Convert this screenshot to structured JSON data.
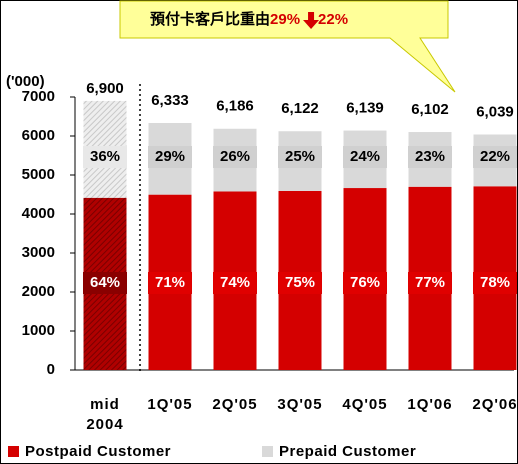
{
  "chart_data": {
    "type": "stacked-bar",
    "callout": {
      "text": "預付卡客戶比重由",
      "from": "29%",
      "to": "22%"
    },
    "y_label": "('000)",
    "categories": [
      "mid 2004",
      "1Q'05",
      "2Q'05",
      "3Q'05",
      "4Q'05",
      "1Q'06",
      "2Q'06"
    ],
    "totals": {
      "values": [
        6900,
        6333,
        6186,
        6122,
        6139,
        6102,
        6039
      ],
      "value_labels": [
        "6,900",
        "6,333",
        "6,186",
        "6,122",
        "6,139",
        "6,102",
        "6,039"
      ]
    },
    "series": [
      {
        "name": "Postpaid Customer",
        "color": "#d40000",
        "values": [
          64,
          71,
          74,
          75,
          76,
          77,
          78
        ],
        "value_labels": [
          "64%",
          "71%",
          "74%",
          "75%",
          "76%",
          "77%",
          "78%"
        ]
      },
      {
        "name": "Prepaid Customer",
        "color": "#d9d9d9",
        "values": [
          36,
          29,
          26,
          25,
          24,
          23,
          22
        ],
        "value_labels": [
          "36%",
          "29%",
          "26%",
          "25%",
          "24%",
          "23%",
          "22%"
        ]
      }
    ],
    "ylim": [
      0,
      7000
    ],
    "yticks": [
      0,
      1000,
      2000,
      3000,
      4000,
      5000,
      6000,
      7000
    ]
  }
}
